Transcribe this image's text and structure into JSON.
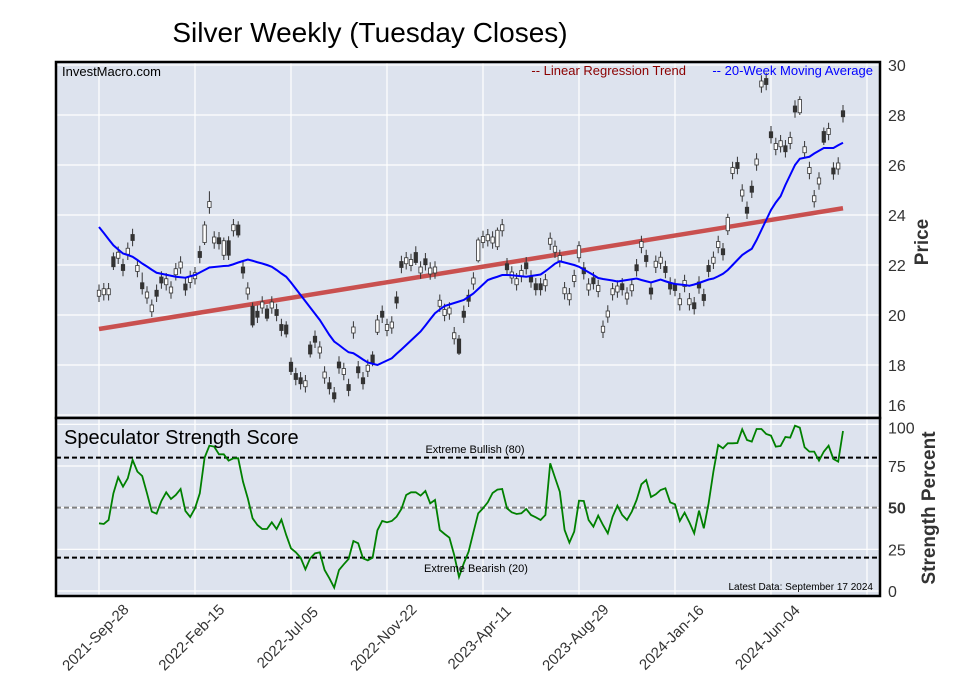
{
  "chart_data": [
    {
      "type": "candlestick",
      "title": "Silver Weekly (Tuesday Closes)",
      "watermark": "InvestMacro.com",
      "ylabel": "Price",
      "ylim": [
        16,
        30
      ],
      "yticks": [
        16,
        18,
        20,
        22,
        24,
        26,
        28,
        30
      ],
      "grid": true,
      "legend_position": "top-right",
      "legend": [
        {
          "label": "-- Linear Regression Trend",
          "color": "#8b0000"
        },
        {
          "label": "-- 20-Week Moving Average",
          "color": "#0000ff"
        }
      ],
      "colors": {
        "panel": "#dde3ee",
        "up_body": "#ffffff",
        "down_body": "#333333",
        "wick": "#333333",
        "trend": "#c9504f",
        "ma": "#0000ff"
      },
      "x_tick_labels": [
        "2021-Sep-28",
        "2022-Feb-15",
        "2022-Jul-05",
        "2022-Nov-22",
        "2023-Apr-11",
        "2023-Aug-29",
        "2024-Jan-16",
        "2024-Jun-04"
      ],
      "candles_ohlc": [
        [
          20.75,
          21.22,
          20.52,
          20.99
        ],
        [
          20.81,
          21.28,
          20.58,
          21.05
        ],
        [
          20.81,
          21.28,
          20.58,
          21.05
        ],
        [
          22.33,
          22.5,
          21.8,
          21.93
        ],
        [
          22.27,
          22.74,
          22.04,
          22.51
        ],
        [
          22.02,
          22.25,
          21.55,
          21.78
        ],
        [
          22.43,
          22.9,
          22.2,
          22.67
        ],
        [
          23.22,
          23.45,
          22.75,
          22.98
        ],
        [
          21.74,
          22.21,
          21.51,
          21.98
        ],
        [
          21.29,
          21.7,
          20.82,
          21.05
        ],
        [
          20.68,
          21.15,
          20.45,
          20.92
        ],
        [
          20.13,
          20.62,
          19.92,
          20.4
        ],
        [
          20.99,
          21.22,
          20.52,
          20.75
        ],
        [
          21.52,
          21.75,
          21.05,
          21.28
        ],
        [
          21.21,
          21.68,
          20.98,
          21.45
        ],
        [
          20.88,
          21.35,
          20.65,
          21.12
        ],
        [
          21.61,
          22.08,
          21.38,
          21.85
        ],
        [
          21.88,
          22.35,
          21.65,
          22.12
        ],
        [
          21.24,
          21.47,
          20.77,
          21.0
        ],
        [
          21.3,
          21.77,
          21.07,
          21.54
        ],
        [
          21.45,
          21.92,
          21.22,
          21.69
        ],
        [
          22.54,
          22.77,
          22.07,
          22.3
        ],
        [
          22.9,
          23.75,
          22.8,
          23.6
        ],
        [
          24.3,
          24.95,
          24.05,
          24.54
        ],
        [
          22.88,
          23.35,
          22.65,
          23.12
        ],
        [
          23.09,
          23.32,
          22.62,
          22.85
        ],
        [
          22.39,
          23.1,
          22.2,
          22.97
        ],
        [
          22.97,
          23.15,
          22.2,
          22.39
        ],
        [
          23.37,
          23.84,
          23.14,
          23.61
        ],
        [
          23.6,
          23.75,
          23.1,
          23.2
        ],
        [
          21.92,
          22.15,
          21.45,
          21.68
        ],
        [
          20.84,
          21.31,
          20.61,
          21.08
        ],
        [
          20.35,
          20.5,
          19.5,
          19.6
        ],
        [
          20.15,
          20.38,
          19.68,
          19.91
        ],
        [
          20.28,
          20.75,
          20.05,
          20.52
        ],
        [
          20.24,
          20.4,
          19.75,
          19.87
        ],
        [
          20.28,
          20.75,
          20.05,
          20.52
        ],
        [
          20.22,
          20.45,
          19.75,
          19.98
        ],
        [
          19.62,
          19.85,
          19.15,
          19.38
        ],
        [
          19.6,
          19.75,
          19.1,
          19.24
        ],
        [
          18.11,
          18.3,
          17.6,
          17.74
        ],
        [
          17.66,
          17.89,
          17.19,
          17.42
        ],
        [
          17.49,
          17.72,
          17.02,
          17.25
        ],
        [
          17.13,
          17.6,
          16.9,
          17.37
        ],
        [
          18.8,
          18.95,
          18.3,
          18.44
        ],
        [
          19.15,
          19.38,
          18.68,
          18.91
        ],
        [
          18.48,
          18.95,
          18.25,
          18.72
        ],
        [
          17.48,
          17.95,
          17.25,
          17.72
        ],
        [
          17.29,
          17.52,
          16.82,
          17.05
        ],
        [
          16.89,
          17.12,
          16.5,
          16.65
        ],
        [
          18.12,
          18.35,
          17.65,
          17.88
        ],
        [
          17.62,
          18.09,
          17.39,
          17.86
        ],
        [
          17.22,
          17.45,
          16.75,
          16.98
        ],
        [
          19.28,
          19.75,
          19.05,
          19.52
        ],
        [
          17.93,
          18.16,
          17.46,
          17.69
        ],
        [
          17.49,
          17.72,
          17.02,
          17.25
        ],
        [
          17.75,
          18.22,
          17.52,
          17.99
        ],
        [
          18.4,
          18.55,
          17.95,
          18.07
        ],
        [
          19.31,
          20.0,
          19.2,
          19.8
        ],
        [
          20.15,
          20.38,
          19.68,
          19.91
        ],
        [
          19.38,
          19.85,
          19.15,
          19.62
        ],
        [
          19.48,
          19.95,
          19.25,
          19.72
        ],
        [
          20.72,
          20.95,
          20.25,
          20.48
        ],
        [
          22.14,
          22.37,
          21.67,
          21.9
        ],
        [
          22.05,
          22.52,
          21.82,
          22.29
        ],
        [
          21.98,
          22.45,
          21.75,
          22.22
        ],
        [
          22.5,
          22.75,
          22.0,
          22.1
        ],
        [
          21.68,
          22.15,
          21.45,
          21.92
        ],
        [
          22.25,
          22.48,
          21.78,
          22.01
        ],
        [
          21.64,
          22.11,
          21.41,
          21.88
        ],
        [
          21.68,
          22.15,
          21.45,
          21.92
        ],
        [
          20.35,
          20.82,
          20.12,
          20.59
        ],
        [
          19.98,
          20.45,
          19.75,
          20.22
        ],
        [
          20.04,
          20.51,
          19.81,
          20.28
        ],
        [
          19.05,
          19.52,
          18.82,
          19.29
        ],
        [
          19.04,
          19.2,
          18.4,
          18.47
        ],
        [
          20.15,
          20.38,
          19.68,
          19.91
        ],
        [
          20.79,
          21.02,
          20.32,
          20.55
        ],
        [
          21.24,
          21.71,
          21.01,
          21.48
        ],
        [
          22.17,
          23.1,
          22.1,
          23.0
        ],
        [
          22.9,
          23.37,
          22.67,
          23.14
        ],
        [
          22.97,
          23.44,
          22.74,
          23.21
        ],
        [
          22.88,
          23.35,
          22.65,
          23.12
        ],
        [
          22.73,
          23.5,
          22.6,
          23.39
        ],
        [
          23.37,
          23.84,
          23.14,
          23.61
        ],
        [
          22.05,
          22.28,
          21.58,
          21.81
        ],
        [
          21.48,
          21.95,
          21.25,
          21.72
        ],
        [
          21.21,
          21.68,
          20.98,
          21.45
        ],
        [
          21.54,
          22.01,
          21.31,
          21.78
        ],
        [
          22.09,
          22.32,
          21.62,
          21.85
        ],
        [
          21.56,
          21.79,
          21.09,
          21.32
        ],
        [
          21.25,
          21.48,
          20.78,
          21.01
        ],
        [
          21.25,
          21.48,
          20.78,
          21.01
        ],
        [
          21.17,
          21.64,
          20.94,
          21.41
        ],
        [
          22.83,
          23.3,
          22.6,
          23.07
        ],
        [
          22.51,
          22.98,
          22.28,
          22.75
        ],
        [
          22.14,
          22.61,
          21.91,
          22.38
        ],
        [
          20.85,
          21.32,
          20.62,
          21.09
        ],
        [
          20.61,
          21.08,
          20.38,
          20.85
        ],
        [
          21.34,
          21.81,
          21.11,
          21.58
        ],
        [
          22.29,
          22.95,
          22.1,
          22.77
        ],
        [
          21.89,
          22.12,
          21.42,
          21.65
        ],
        [
          21.0,
          21.47,
          20.77,
          21.24
        ],
        [
          21.49,
          21.72,
          21.02,
          21.25
        ],
        [
          20.94,
          21.41,
          20.71,
          21.18
        ],
        [
          19.31,
          19.78,
          19.08,
          19.55
        ],
        [
          19.92,
          20.39,
          19.69,
          20.16
        ],
        [
          20.81,
          21.28,
          20.58,
          21.05
        ],
        [
          20.92,
          21.39,
          20.69,
          21.16
        ],
        [
          21.25,
          21.48,
          20.78,
          21.01
        ],
        [
          20.64,
          21.11,
          20.41,
          20.88
        ],
        [
          20.97,
          21.44,
          20.74,
          21.21
        ],
        [
          22.01,
          22.24,
          21.54,
          21.77
        ],
        [
          22.7,
          23.17,
          22.47,
          22.94
        ],
        [
          22.38,
          22.61,
          21.91,
          22.14
        ],
        [
          21.08,
          21.31,
          20.61,
          20.84
        ],
        [
          21.91,
          22.38,
          21.68,
          22.15
        ],
        [
          22.07,
          22.54,
          21.84,
          22.31
        ],
        [
          21.94,
          22.17,
          21.47,
          21.7
        ],
        [
          21.28,
          21.51,
          20.81,
          21.04
        ],
        [
          21.22,
          21.45,
          20.75,
          20.98
        ],
        [
          20.41,
          20.88,
          20.18,
          20.65
        ],
        [
          21.14,
          21.61,
          20.91,
          21.38
        ],
        [
          20.41,
          20.88,
          20.18,
          20.65
        ],
        [
          20.49,
          20.72,
          20.02,
          20.25
        ],
        [
          21.32,
          21.55,
          20.85,
          21.08
        ],
        [
          20.82,
          21.05,
          20.35,
          20.58
        ],
        [
          21.98,
          22.21,
          21.51,
          21.74
        ],
        [
          22.07,
          22.54,
          21.84,
          22.31
        ],
        [
          22.7,
          23.17,
          22.47,
          22.94
        ],
        [
          22.65,
          22.88,
          22.18,
          22.41
        ],
        [
          23.37,
          24.05,
          23.2,
          23.9
        ],
        [
          25.66,
          26.13,
          25.43,
          25.9
        ],
        [
          26.1,
          26.33,
          25.63,
          25.86
        ],
        [
          24.76,
          25.23,
          24.53,
          25.0
        ],
        [
          24.31,
          24.54,
          23.84,
          24.07
        ],
        [
          25.15,
          25.38,
          24.68,
          24.91
        ],
        [
          26.0,
          26.47,
          25.77,
          26.24
        ],
        [
          29.12,
          29.59,
          28.89,
          29.36
        ],
        [
          29.46,
          29.69,
          28.99,
          29.22
        ],
        [
          27.33,
          27.56,
          26.86,
          27.09
        ],
        [
          26.62,
          27.09,
          26.39,
          26.86
        ],
        [
          26.73,
          27.2,
          26.5,
          26.97
        ],
        [
          26.77,
          27.0,
          26.3,
          26.53
        ],
        [
          26.86,
          27.33,
          26.63,
          27.1
        ],
        [
          28.36,
          28.59,
          27.89,
          28.12
        ],
        [
          28.09,
          28.75,
          28.0,
          28.62
        ],
        [
          26.49,
          26.96,
          26.26,
          26.73
        ],
        [
          25.66,
          26.13,
          25.43,
          25.9
        ],
        [
          24.53,
          25.0,
          24.3,
          24.77
        ],
        [
          25.24,
          25.71,
          25.01,
          25.48
        ],
        [
          27.34,
          27.5,
          26.8,
          26.91
        ],
        [
          27.22,
          27.69,
          26.99,
          27.46
        ],
        [
          25.88,
          26.11,
          25.41,
          25.64
        ],
        [
          25.84,
          26.31,
          25.61,
          26.08
        ],
        [
          28.17,
          28.4,
          27.7,
          27.93
        ]
      ],
      "ma_20_week": [
        23.52,
        23.28,
        23.03,
        22.79,
        22.62,
        22.46,
        22.4,
        22.33,
        22.2,
        22.06,
        21.94,
        21.81,
        21.69,
        21.65,
        21.61,
        21.57,
        21.53,
        21.51,
        21.49,
        21.55,
        21.6,
        21.7,
        21.8,
        21.9,
        21.92,
        21.94,
        21.96,
        21.97,
        22.03,
        22.1,
        22.16,
        22.22,
        22.17,
        22.11,
        22.06,
        22.0,
        21.93,
        21.8,
        21.66,
        21.53,
        21.3,
        21.05,
        20.8,
        20.55,
        20.3,
        20.05,
        19.8,
        19.5,
        19.2,
        18.94,
        18.8,
        18.65,
        18.51,
        18.47,
        18.35,
        18.22,
        18.1,
        18.05,
        18.0,
        18.09,
        18.18,
        18.27,
        18.45,
        18.62,
        18.8,
        18.98,
        19.16,
        19.34,
        19.58,
        19.83,
        20.07,
        20.22,
        20.36,
        20.42,
        20.48,
        20.54,
        20.6,
        20.73,
        20.86,
        21.04,
        21.22,
        21.4,
        21.47,
        21.53,
        21.6,
        21.6,
        21.59,
        21.57,
        21.55,
        21.53,
        21.56,
        21.59,
        21.62,
        21.75,
        21.9,
        22.05,
        22.15,
        22.1,
        22.05,
        22.0,
        21.93,
        21.82,
        21.71,
        21.6,
        21.48,
        21.44,
        21.41,
        21.38,
        21.34,
        21.37,
        21.4,
        21.43,
        21.46,
        21.4,
        21.35,
        21.3,
        21.36,
        21.42,
        21.35,
        21.29,
        21.24,
        21.22,
        21.2,
        21.17,
        21.22,
        21.28,
        21.35,
        21.42,
        21.46,
        21.55,
        21.65,
        21.8,
        22.0,
        22.2,
        22.4,
        22.53,
        22.65,
        23.0,
        23.4,
        23.8,
        24.2,
        24.5,
        24.75,
        25.2,
        25.6,
        26.0,
        26.25,
        26.29,
        26.33,
        26.46,
        26.57,
        26.68,
        26.68,
        26.68,
        26.79,
        26.89
      ],
      "regression_trend": {
        "start": 19.44,
        "end": 24.27
      }
    },
    {
      "type": "line",
      "title": "Speculator Strength Score",
      "ylabel": "Strength Percent",
      "ylim": [
        0,
        100
      ],
      "yticks": [
        0,
        25,
        50,
        75,
        100
      ],
      "grid": true,
      "color": "#008000",
      "reference_lines": [
        {
          "value": 80,
          "label": "Extreme Bullish (80)",
          "color": "#000000"
        },
        {
          "value": 50,
          "label": "",
          "color": "#808080"
        },
        {
          "value": 20,
          "label": "Extreme Bearish (20)",
          "color": "#000000"
        }
      ],
      "annotation": "Latest Data: September 17 2024",
      "values": [
        40.6,
        40.2,
        42.6,
        58.6,
        68.2,
        62.6,
        67.6,
        78.6,
        71.6,
        69,
        58.6,
        47.6,
        46.4,
        54,
        59.2,
        55.2,
        57.6,
        61.2,
        48,
        44.4,
        49.6,
        58.6,
        80,
        87.2,
        86.6,
        82,
        82,
        78.2,
        79.6,
        79.6,
        65.6,
        55.6,
        43.6,
        39.6,
        37.2,
        37.2,
        41.2,
        37.2,
        42.8,
        33.6,
        25.6,
        23.2,
        20,
        13,
        19.6,
        22.6,
        23.2,
        12.6,
        7.6,
        2,
        12.6,
        16,
        19.2,
        30,
        28.6,
        19.6,
        18.4,
        20,
        36.4,
        42,
        41.2,
        42,
        44.6,
        49.2,
        57.6,
        59.2,
        59.2,
        57.2,
        60,
        52.6,
        54.6,
        36.6,
        34.2,
        32,
        21.6,
        8.4,
        16.6,
        23.6,
        35.2,
        46.6,
        49.6,
        53.2,
        58.8,
        60.8,
        61.2,
        49.6,
        47.2,
        46.2,
        46.6,
        49.2,
        45.6,
        44.2,
        42.6,
        45.6,
        76.6,
        68,
        59.6,
        36.6,
        29,
        35.6,
        54.2,
        54,
        42.6,
        38.6,
        45.2,
        39.6,
        34.6,
        44.6,
        51.2,
        45.6,
        42.6,
        47.6,
        54.6,
        64,
        66.6,
        56.4,
        58,
        60.6,
        61.6,
        53.2,
        52,
        42,
        47,
        41.2,
        34.6,
        48.2,
        37.6,
        52.6,
        71.6,
        87.6,
        85.6,
        88.6,
        88.6,
        88.8,
        97,
        90.6,
        89.6,
        97.2,
        97.2,
        94.2,
        93.2,
        86.6,
        87,
        92.4,
        92,
        99.2,
        98,
        86.2,
        83.6,
        83.6,
        78.2,
        83.6,
        87.2,
        79.2,
        77.6,
        96
      ]
    }
  ]
}
